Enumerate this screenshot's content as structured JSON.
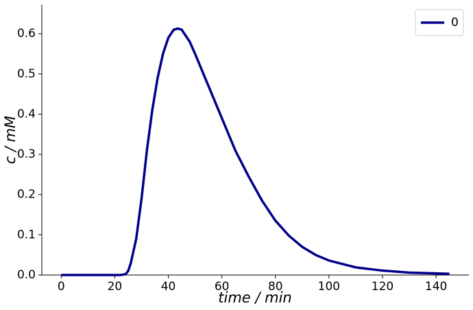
{
  "chart_data": {
    "type": "line",
    "x_label": "time / min",
    "y_label": "c / mM",
    "x": [
      0,
      10,
      20,
      22,
      24,
      25,
      26,
      28,
      30,
      32,
      34,
      36,
      38,
      40,
      42,
      43.5,
      45,
      48,
      50,
      55,
      60,
      65,
      70,
      75,
      80,
      85,
      90,
      95,
      100,
      110,
      120,
      130,
      140,
      145
    ],
    "series": [
      {
        "name": "0",
        "color": "#00008b",
        "values": [
          0,
          0,
          0,
          0,
          0.002,
          0.01,
          0.03,
          0.09,
          0.19,
          0.31,
          0.41,
          0.49,
          0.55,
          0.59,
          0.61,
          0.613,
          0.61,
          0.58,
          0.55,
          0.47,
          0.39,
          0.31,
          0.245,
          0.185,
          0.135,
          0.098,
          0.07,
          0.05,
          0.036,
          0.019,
          0.011,
          0.006,
          0.004,
          0.003
        ]
      }
    ],
    "xlim": [
      -7.25,
      152.25
    ],
    "xticks": [
      0,
      20,
      40,
      60,
      80,
      100,
      120,
      140
    ],
    "ylim": [
      0,
      0.672
    ],
    "yticks": [
      {
        "value": 0,
        "label": "0.0"
      },
      0.1,
      0.2,
      0.3,
      0.4,
      0.5,
      0.6
    ],
    "legend": "upper right",
    "grid": false
  }
}
